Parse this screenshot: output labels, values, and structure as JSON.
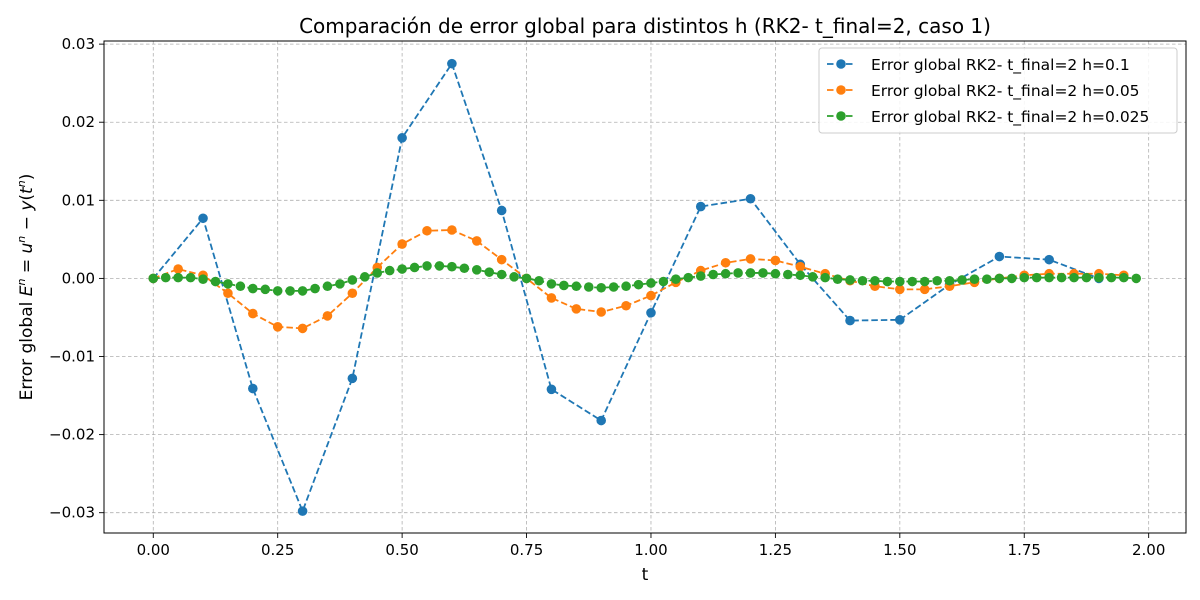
{
  "chart_data": {
    "type": "line",
    "title": "Comparación de error global para distintos h (RK2- t_final=2, caso 1)",
    "xlabel": "t",
    "ylabel": "Error global E^n = u^n − y(t^n)",
    "xlim": [
      -0.099,
      2.075
    ],
    "ylim": [
      -0.0326,
      0.0304
    ],
    "xticks": [
      0,
      0.25,
      0.5,
      0.75,
      1,
      1.25,
      1.5,
      1.75,
      2
    ],
    "xtick_labels": [
      "0.00",
      "0.25",
      "0.50",
      "0.75",
      "1.00",
      "1.25",
      "1.50",
      "1.75",
      "2.00"
    ],
    "yticks": [
      -0.03,
      -0.02,
      -0.01,
      0,
      0.01,
      0.02,
      0.03
    ],
    "ytick_labels": [
      "−0.03",
      "−0.02",
      "−0.01",
      "0.00",
      "0.01",
      "0.02",
      "0.03"
    ],
    "grid": true,
    "legend_position": "top-right",
    "series": [
      {
        "name": "Error global RK2- t_final=2 h=0.1",
        "color": "#1f77b4",
        "x": [
          0,
          0.1,
          0.2,
          0.3,
          0.4,
          0.5,
          0.6,
          0.7,
          0.8,
          0.9,
          1.0,
          1.1,
          1.2,
          1.3,
          1.4,
          1.5,
          1.6,
          1.7,
          1.8,
          1.9
        ],
        "y": [
          0,
          0.0077,
          -0.0141,
          -0.0298,
          -0.0128,
          0.018,
          0.0275,
          0.0087,
          -0.0142,
          -0.0182,
          -0.0044,
          0.0092,
          0.0102,
          0.0018,
          -0.0054,
          -0.0053,
          -0.0008,
          0.0028,
          0.0024,
          0
        ]
      },
      {
        "name": "Error global RK2- t_final=2 h=0.05",
        "color": "#ff7f0e",
        "x": [
          0,
          0.05,
          0.1,
          0.15,
          0.2,
          0.25,
          0.3,
          0.35,
          0.4,
          0.45,
          0.5,
          0.55,
          0.6,
          0.65,
          0.7,
          0.75,
          0.8,
          0.85,
          0.9,
          0.95,
          1.0,
          1.05,
          1.1,
          1.15,
          1.2,
          1.25,
          1.3,
          1.35,
          1.4,
          1.45,
          1.5,
          1.55,
          1.6,
          1.65,
          1.7,
          1.75,
          1.8,
          1.85,
          1.9,
          1.95
        ],
        "y": [
          0,
          0.0012,
          0.0004,
          -0.0019,
          -0.0045,
          -0.0062,
          -0.0064,
          -0.0048,
          -0.0019,
          0.0014,
          0.0044,
          0.0061,
          0.0062,
          0.0048,
          0.0024,
          0,
          -0.0025,
          -0.0039,
          -0.0043,
          -0.0035,
          -0.0022,
          -0.0005,
          0.001,
          0.002,
          0.0025,
          0.0023,
          0.0015,
          0.0006,
          -0.0003,
          -0.001,
          -0.0014,
          -0.0014,
          -0.001,
          -0.0005,
          0,
          0.0004,
          0.0006,
          0.0006,
          0.0006,
          0.0004
        ]
      },
      {
        "name": "Error global RK2- t_final=2 h=0.025",
        "color": "#2ca02c",
        "x": [
          0,
          0.025,
          0.05,
          0.075,
          0.1,
          0.125,
          0.15,
          0.175,
          0.2,
          0.225,
          0.25,
          0.275,
          0.3,
          0.325,
          0.35,
          0.375,
          0.4,
          0.425,
          0.45,
          0.475,
          0.5,
          0.525,
          0.55,
          0.575,
          0.6,
          0.625,
          0.65,
          0.675,
          0.7,
          0.725,
          0.75,
          0.775,
          0.8,
          0.825,
          0.85,
          0.875,
          0.9,
          0.925,
          0.95,
          0.975,
          1.0,
          1.025,
          1.05,
          1.075,
          1.1,
          1.125,
          1.15,
          1.175,
          1.2,
          1.225,
          1.25,
          1.275,
          1.3,
          1.325,
          1.35,
          1.375,
          1.4,
          1.425,
          1.45,
          1.475,
          1.5,
          1.525,
          1.55,
          1.575,
          1.6,
          1.625,
          1.65,
          1.675,
          1.7,
          1.725,
          1.75,
          1.775,
          1.8,
          1.825,
          1.85,
          1.875,
          1.9,
          1.925,
          1.95,
          1.975
        ],
        "y": [
          0,
          0.0001,
          0.0001,
          0.0001,
          -0.0001,
          -0.0004,
          -0.0007,
          -0.001,
          -0.0013,
          -0.0014,
          -0.0016,
          -0.0016,
          -0.0016,
          -0.0013,
          -0.001,
          -0.0007,
          -0.0002,
          0.0002,
          0.0007,
          0.001,
          0.0012,
          0.0014,
          0.0016,
          0.0016,
          0.0015,
          0.0013,
          0.0011,
          0.0008,
          0.0005,
          0.0002,
          0,
          -0.0003,
          -0.0007,
          -0.0009,
          -0.001,
          -0.0011,
          -0.0012,
          -0.0011,
          -0.001,
          -0.0008,
          -0.0006,
          -0.0004,
          -0.0001,
          0.0001,
          0.0003,
          0.0005,
          0.0006,
          0.0007,
          0.0007,
          0.0007,
          0.0006,
          0.0005,
          0.0004,
          0.0002,
          0.0001,
          -0.0001,
          -0.0002,
          -0.0003,
          -0.0003,
          -0.0004,
          -0.0004,
          -0.0004,
          -0.0004,
          -0.0003,
          -0.0003,
          -0.0002,
          -0.0001,
          -0.0001,
          0,
          0,
          0.0001,
          0.0001,
          0.0001,
          0.0001,
          0.0001,
          0.0001,
          0.0001,
          0.0001,
          0.0001,
          0
        ]
      }
    ]
  }
}
